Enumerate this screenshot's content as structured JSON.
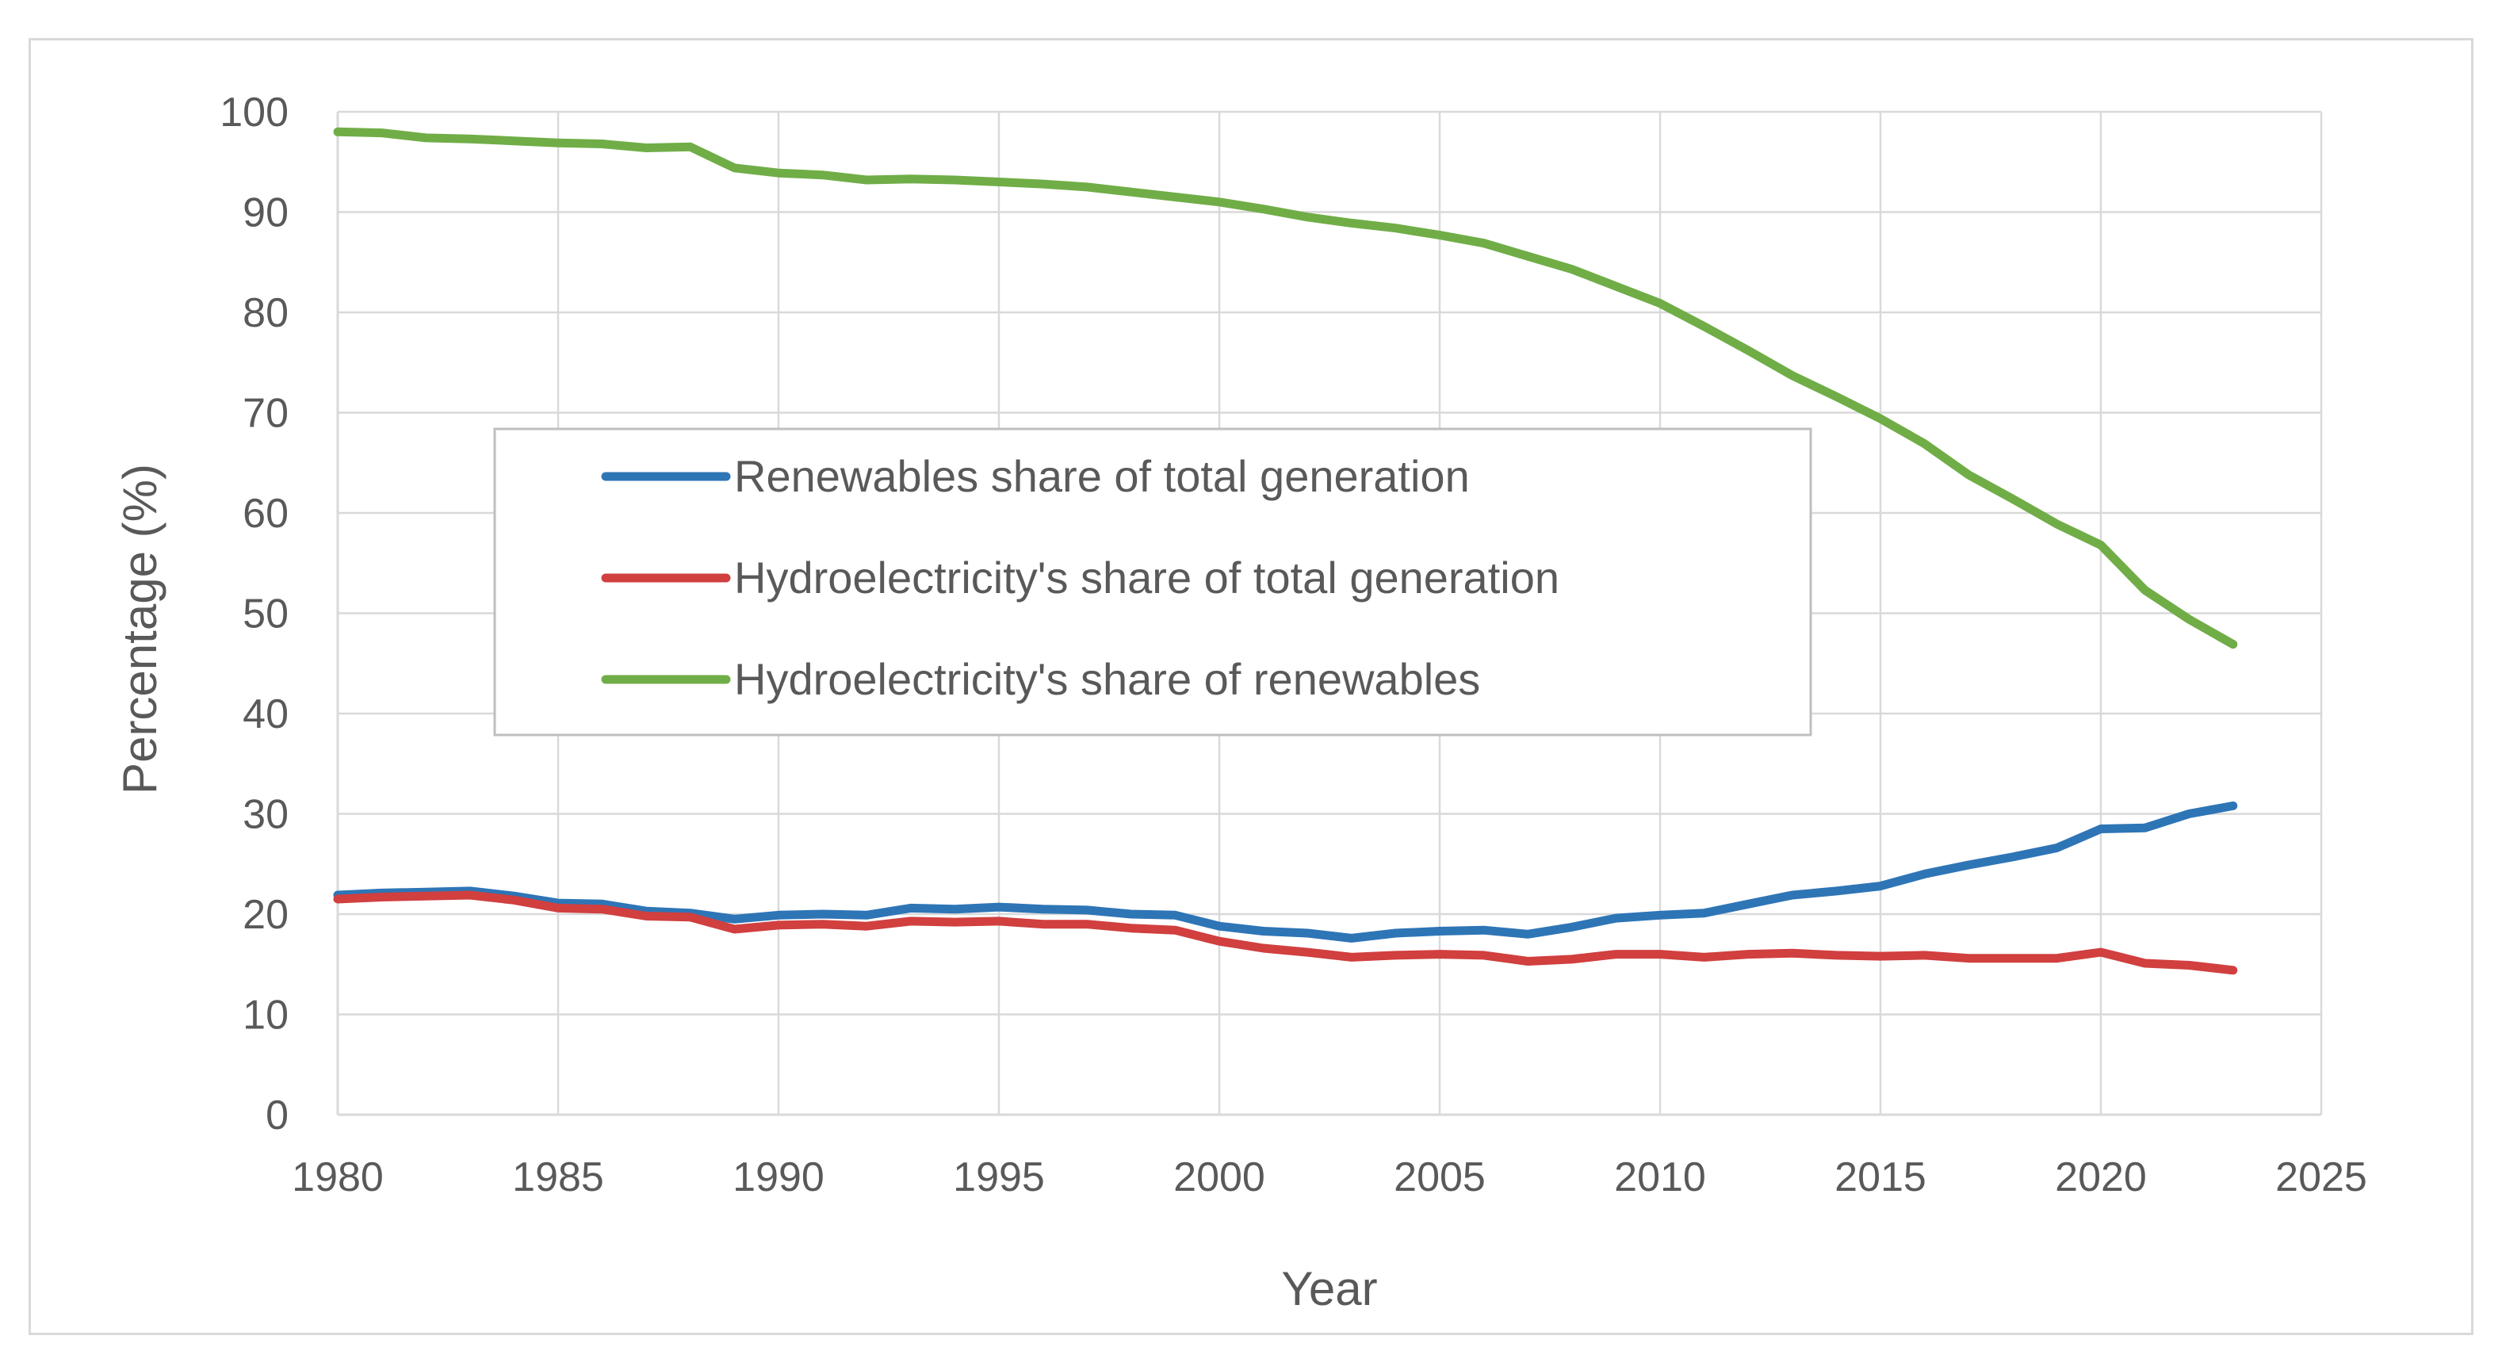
{
  "chart_data": {
    "type": "line",
    "title": "",
    "xlabel": "Year",
    "ylabel": "Percentage (%)",
    "xlim": [
      1980,
      2025
    ],
    "ylim": [
      0,
      100
    ],
    "x_ticks": [
      1980,
      1985,
      1990,
      1995,
      2000,
      2005,
      2010,
      2015,
      2020,
      2025
    ],
    "y_ticks": [
      0,
      10,
      20,
      30,
      40,
      50,
      60,
      70,
      80,
      90,
      100
    ],
    "grid": "on",
    "legend_position": "center-left",
    "x": [
      1980,
      1981,
      1982,
      1983,
      1984,
      1985,
      1986,
      1987,
      1988,
      1989,
      1990,
      1991,
      1992,
      1993,
      1994,
      1995,
      1996,
      1997,
      1998,
      1999,
      2000,
      2001,
      2002,
      2003,
      2004,
      2005,
      2006,
      2007,
      2008,
      2009,
      2010,
      2011,
      2012,
      2013,
      2014,
      2015,
      2016,
      2017,
      2018,
      2019,
      2020,
      2021,
      2022,
      2023
    ],
    "series": [
      {
        "name": "Renewables share of total generation",
        "color": "#2e75b6",
        "values": [
          21.9,
          22.1,
          22.2,
          22.3,
          21.8,
          21.1,
          21.0,
          20.3,
          20.1,
          19.5,
          19.9,
          20.0,
          19.9,
          20.6,
          20.5,
          20.7,
          20.5,
          20.4,
          20.0,
          19.9,
          18.8,
          18.3,
          18.1,
          17.6,
          18.1,
          18.3,
          18.4,
          18.0,
          18.7,
          19.6,
          19.9,
          20.1,
          21.0,
          21.9,
          22.3,
          22.8,
          24.0,
          24.9,
          25.7,
          26.6,
          28.5,
          28.6,
          30.0,
          30.8
        ]
      },
      {
        "name": "Hydroelectricity's share of total generation",
        "color": "#d13f3f",
        "values": [
          21.5,
          21.7,
          21.8,
          21.9,
          21.4,
          20.6,
          20.5,
          19.8,
          19.7,
          18.5,
          18.9,
          19.0,
          18.8,
          19.3,
          19.2,
          19.3,
          19.0,
          19.0,
          18.6,
          18.4,
          17.3,
          16.6,
          16.2,
          15.7,
          15.9,
          16.0,
          15.9,
          15.3,
          15.5,
          16.0,
          16.0,
          15.7,
          16.0,
          16.1,
          15.9,
          15.8,
          15.9,
          15.6,
          15.6,
          15.6,
          16.2,
          15.1,
          14.9,
          14.4
        ]
      },
      {
        "name": "Hydroelectricity's share of renewables",
        "color": "#70ad47",
        "values": [
          98.0,
          97.9,
          97.4,
          97.3,
          97.1,
          96.9,
          96.8,
          96.4,
          96.5,
          94.4,
          93.9,
          93.7,
          93.2,
          93.3,
          93.2,
          93.0,
          92.8,
          92.5,
          92.0,
          91.5,
          91.0,
          90.3,
          89.5,
          88.9,
          88.4,
          87.7,
          86.9,
          85.6,
          84.3,
          82.6,
          80.9,
          78.6,
          76.2,
          73.7,
          71.6,
          69.4,
          66.9,
          63.8,
          61.4,
          58.9,
          56.8,
          52.3,
          49.4,
          46.9
        ]
      }
    ]
  },
  "colors": {
    "grid": "#d9d9d9",
    "text": "#595959",
    "frame": "#d9d9d9",
    "legend_border": "#bfbfbf"
  }
}
